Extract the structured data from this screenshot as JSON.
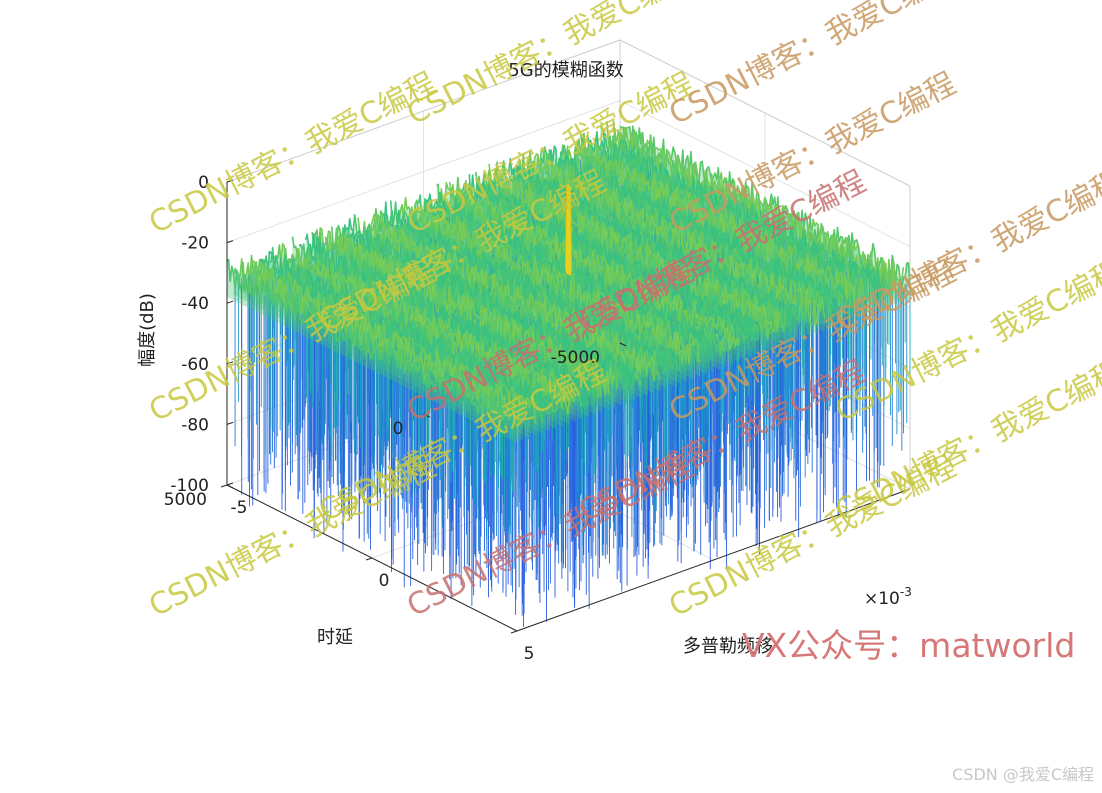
{
  "chart_data": {
    "type": "surface",
    "title": "5G的模糊函数",
    "xlabel": "多普勒频移",
    "ylabel": "时延",
    "zlabel": "幅度(dB)",
    "x_exponent_label": "×10-3",
    "xlim": [
      -0.005,
      0.005
    ],
    "x_ticks": [
      -0.005,
      0,
      0.005
    ],
    "x_tick_labels": [
      "-5",
      "0",
      "5"
    ],
    "ylim": [
      -5000,
      5000
    ],
    "y_ticks": [
      5000,
      0,
      -5000
    ],
    "y_tick_labels": [
      "5000",
      "0",
      "-5000"
    ],
    "zlim": [
      -100,
      0
    ],
    "z_ticks": [
      0,
      -20,
      -40,
      -60,
      -80,
      -100
    ],
    "z_tick_labels": [
      "0",
      "-20",
      "-40",
      "-60",
      "-80",
      "-100"
    ],
    "grid": true,
    "box": true,
    "colormap": [
      "#2a5fe0",
      "#1fa3c9",
      "#2cc08a",
      "#8ccf4a",
      "#e4d21e"
    ],
    "peak": {
      "x": 0,
      "y": 0,
      "z": 0
    },
    "sidelobe_level_db": -30,
    "noise_floor_db": -100
  },
  "watermarks": {
    "repeated_text": "CSDN博客：我爱C编程",
    "bottom_text": "VX公众号：matworld",
    "corner_text": "CSDN @我爱C编程",
    "colors": [
      "#c8c840",
      "#c89a60",
      "#c87070"
    ]
  }
}
